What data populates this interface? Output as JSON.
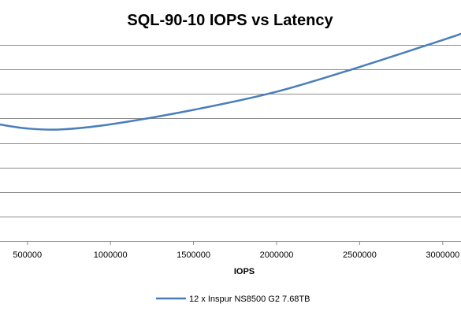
{
  "chart_data": {
    "type": "line",
    "title": "SQL-90-10 IOPS vs Latency",
    "xlabel": "IOPS",
    "ylabel": "",
    "xlim": [
      335000,
      3110000
    ],
    "x_ticks": [
      "500000",
      "1000000",
      "1500000",
      "2000000",
      "2500000",
      "3000000"
    ],
    "x_tick_values": [
      500000,
      1000000,
      1500000,
      2000000,
      2500000,
      3000000
    ],
    "y_gridlines": 8,
    "grid": true,
    "legend_position": "bottom",
    "series": [
      {
        "name": "12 x Inspur NS8500 G2 7.68TB",
        "color": "#4a7ebb",
        "x": [
          335000,
          500000,
          700000,
          1000000,
          1500000,
          2000000,
          2500000,
          3000000,
          3110000
        ],
        "y": [
          4.75,
          4.59,
          4.55,
          4.76,
          5.35,
          6.09,
          7.1,
          8.2,
          8.45
        ]
      }
    ]
  }
}
